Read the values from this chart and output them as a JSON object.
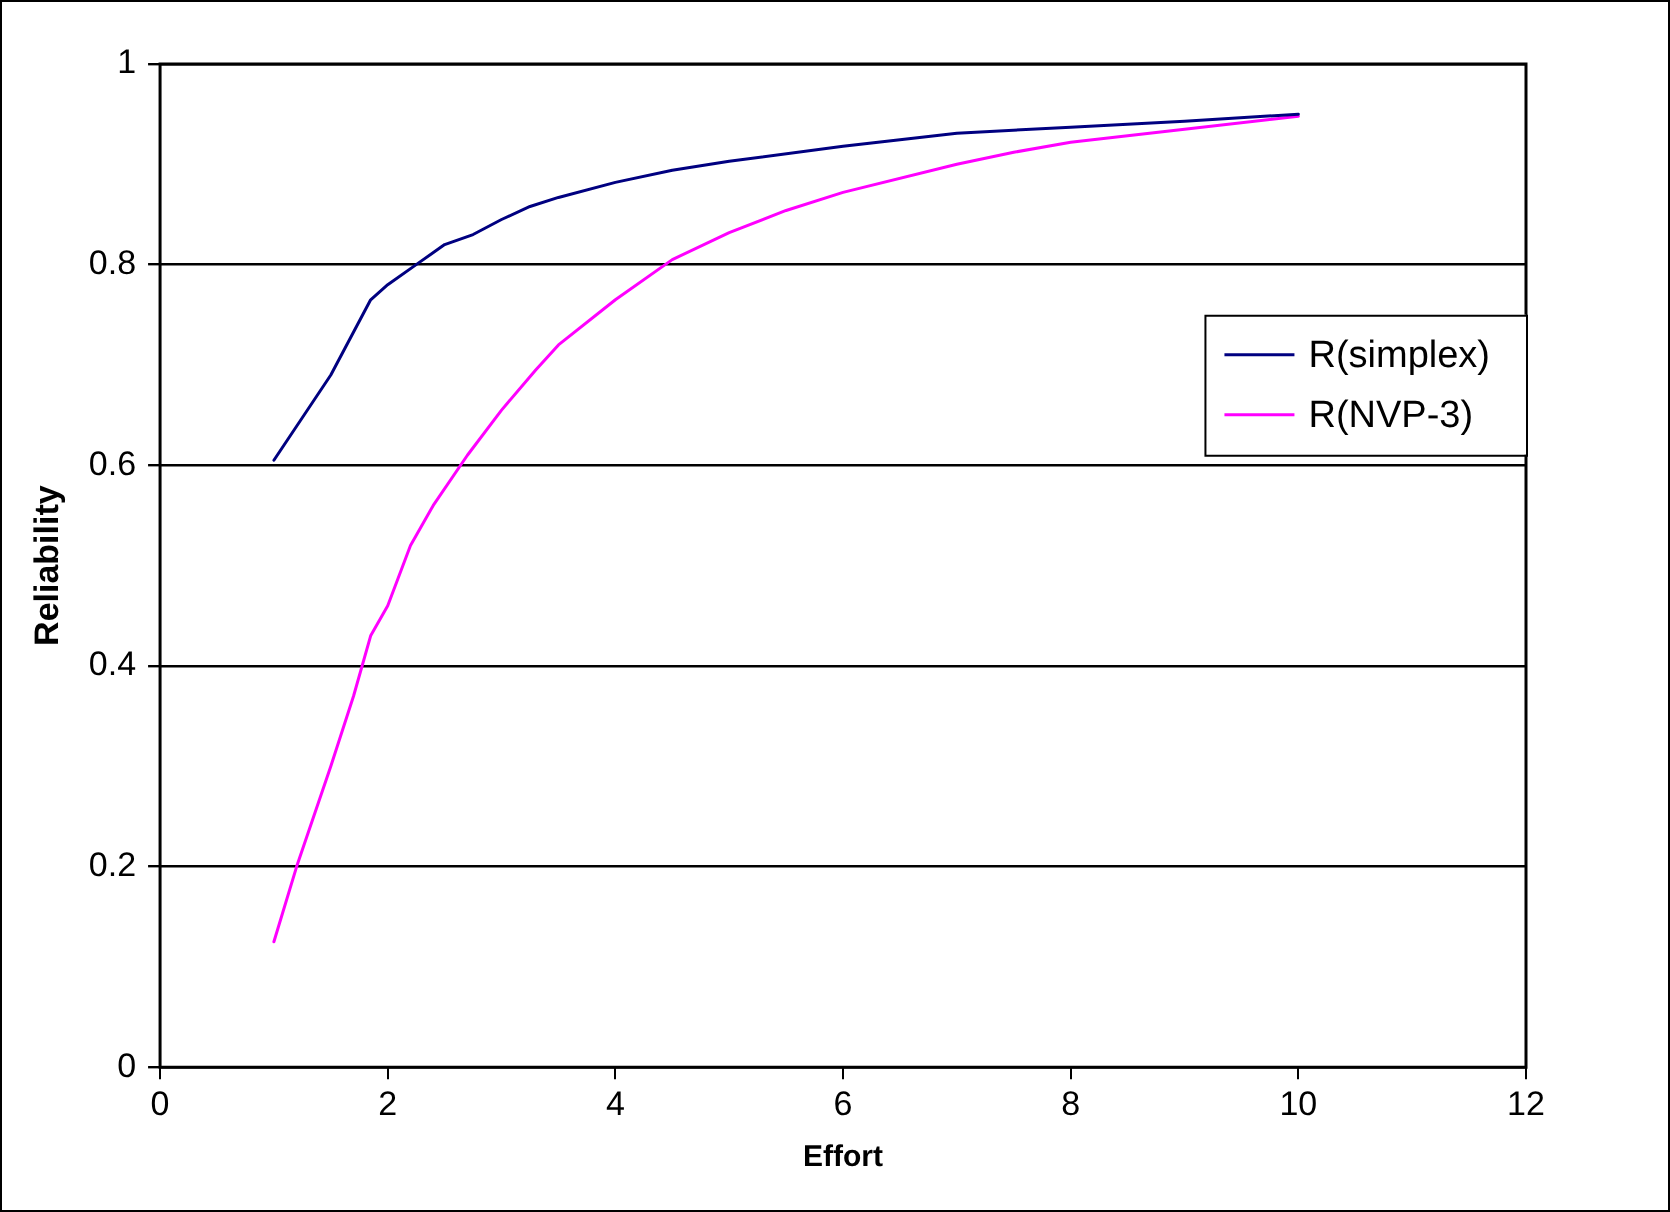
{
  "chart_data": {
    "type": "line",
    "xlabel": "Effort",
    "ylabel": "Reliability",
    "xlim": [
      0,
      12
    ],
    "xticks": [
      0,
      2,
      4,
      6,
      8,
      10,
      12
    ],
    "ylim": [
      0,
      1
    ],
    "yticks": [
      0,
      0.2,
      0.4,
      0.6,
      0.8,
      1
    ],
    "grid": "y",
    "legend": "right",
    "marker": "none",
    "line_style": "solid",
    "series": [
      {
        "name": "R(simplex)",
        "color": "#000080",
        "x": [
          1,
          1.5,
          1.85,
          2,
          2.25,
          2.5,
          2.75,
          3,
          3.25,
          3.5,
          4,
          4.5,
          5,
          6,
          7,
          8,
          9,
          10
        ],
        "values": [
          0.605,
          0.69,
          0.765,
          0.78,
          0.8,
          0.82,
          0.83,
          0.845,
          0.858,
          0.867,
          0.882,
          0.894,
          0.903,
          0.918,
          0.931,
          0.937,
          0.943,
          0.95
        ]
      },
      {
        "name": "R(NVP-3)",
        "color": "#ff00ff",
        "x": [
          1,
          1.2,
          1.5,
          1.7,
          1.85,
          2,
          2.2,
          2.4,
          2.7,
          3,
          3.3,
          3.5,
          4,
          4.5,
          5,
          5.5,
          6,
          7,
          7.5,
          8,
          9,
          10
        ],
        "values": [
          0.125,
          0.2,
          0.3,
          0.37,
          0.43,
          0.46,
          0.52,
          0.56,
          0.61,
          0.655,
          0.695,
          0.72,
          0.765,
          0.805,
          0.832,
          0.854,
          0.872,
          0.9,
          0.912,
          0.922,
          0.935,
          0.948
        ]
      }
    ]
  }
}
